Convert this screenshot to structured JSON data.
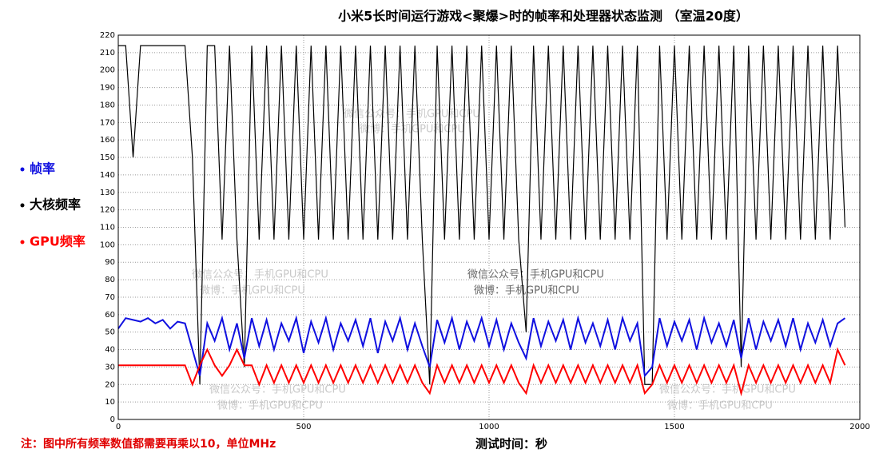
{
  "chart_data": {
    "type": "line",
    "title": "小米5长时间运行游戏<聚爆>时的帧率和处理器状态监测 （室温20度）",
    "x_label": "测试时间：秒",
    "note": "注：图中所有频率数值都需要再乘以10，单位MHz",
    "watermark": {
      "line1": "微信公众号：手机GPU和CPU",
      "line2": "微博：手机GPU和CPU"
    },
    "xlim": [
      0,
      2000
    ],
    "xticks": [
      0,
      500,
      1000,
      1500,
      2000
    ],
    "ylim": [
      0,
      220
    ],
    "yticks": [
      0,
      10,
      20,
      30,
      40,
      50,
      60,
      70,
      80,
      90,
      100,
      110,
      120,
      130,
      140,
      150,
      160,
      170,
      180,
      190,
      200,
      210,
      220
    ],
    "grid": true,
    "x": [
      0,
      20,
      40,
      60,
      80,
      100,
      120,
      140,
      160,
      180,
      200,
      220,
      240,
      260,
      280,
      300,
      320,
      340,
      360,
      380,
      400,
      420,
      440,
      460,
      480,
      500,
      520,
      540,
      560,
      580,
      600,
      620,
      640,
      660,
      680,
      700,
      720,
      740,
      760,
      780,
      800,
      820,
      840,
      860,
      880,
      900,
      920,
      940,
      960,
      980,
      1000,
      1020,
      1040,
      1060,
      1080,
      1100,
      1120,
      1140,
      1160,
      1180,
      1200,
      1220,
      1240,
      1260,
      1280,
      1300,
      1320,
      1340,
      1360,
      1380,
      1400,
      1420,
      1440,
      1460,
      1480,
      1500,
      1520,
      1540,
      1560,
      1580,
      1600,
      1620,
      1640,
      1660,
      1680,
      1700,
      1720,
      1740,
      1760,
      1780,
      1800,
      1820,
      1840,
      1860,
      1880,
      1900,
      1920,
      1940,
      1960
    ],
    "series": [
      {
        "name": "大核频率",
        "color": "#000000",
        "values": [
          214,
          214,
          150,
          214,
          214,
          214,
          214,
          214,
          214,
          214,
          150,
          20,
          214,
          214,
          103,
          214,
          103,
          30,
          214,
          103,
          214,
          103,
          214,
          103,
          214,
          103,
          214,
          103,
          214,
          103,
          214,
          103,
          214,
          103,
          214,
          103,
          214,
          103,
          214,
          103,
          214,
          103,
          20,
          214,
          103,
          214,
          103,
          214,
          103,
          214,
          103,
          214,
          103,
          214,
          103,
          50,
          214,
          103,
          214,
          103,
          214,
          103,
          214,
          103,
          214,
          103,
          214,
          103,
          214,
          103,
          214,
          20,
          20,
          214,
          103,
          214,
          103,
          214,
          103,
          214,
          103,
          214,
          103,
          214,
          30,
          214,
          103,
          214,
          103,
          214,
          103,
          214,
          103,
          214,
          103,
          214,
          103,
          214,
          110
        ]
      },
      {
        "name": "帧率",
        "color": "#1010e0",
        "values": [
          52,
          58,
          57,
          56,
          58,
          55,
          57,
          52,
          56,
          55,
          40,
          25,
          55,
          45,
          58,
          40,
          55,
          35,
          58,
          42,
          57,
          40,
          55,
          45,
          58,
          38,
          56,
          44,
          58,
          40,
          55,
          45,
          57,
          42,
          58,
          38,
          56,
          45,
          58,
          40,
          55,
          42,
          30,
          57,
          44,
          58,
          40,
          56,
          45,
          58,
          42,
          57,
          40,
          55,
          44,
          35,
          58,
          42,
          56,
          45,
          57,
          40,
          58,
          44,
          55,
          42,
          57,
          40,
          58,
          45,
          55,
          25,
          30,
          58,
          42,
          56,
          45,
          57,
          40,
          58,
          44,
          55,
          42,
          57,
          35,
          58,
          40,
          56,
          45,
          57,
          42,
          58,
          40,
          55,
          44,
          57,
          42,
          55,
          58
        ]
      },
      {
        "name": "GPU频率",
        "color": "#ff0000",
        "values": [
          31,
          31,
          31,
          31,
          31,
          31,
          31,
          31,
          31,
          31,
          20,
          31,
          40,
          31,
          25,
          31,
          40,
          31,
          31,
          20,
          31,
          21,
          31,
          21,
          31,
          21,
          31,
          21,
          31,
          21,
          31,
          21,
          31,
          21,
          31,
          21,
          31,
          21,
          31,
          21,
          31,
          21,
          15,
          31,
          21,
          31,
          21,
          31,
          21,
          31,
          21,
          31,
          21,
          31,
          21,
          15,
          31,
          21,
          31,
          21,
          31,
          21,
          31,
          21,
          31,
          21,
          31,
          21,
          31,
          21,
          31,
          15,
          20,
          31,
          21,
          31,
          21,
          31,
          21,
          31,
          21,
          31,
          21,
          31,
          15,
          31,
          21,
          31,
          21,
          31,
          21,
          31,
          21,
          31,
          21,
          31,
          21,
          40,
          31
        ]
      }
    ]
  }
}
